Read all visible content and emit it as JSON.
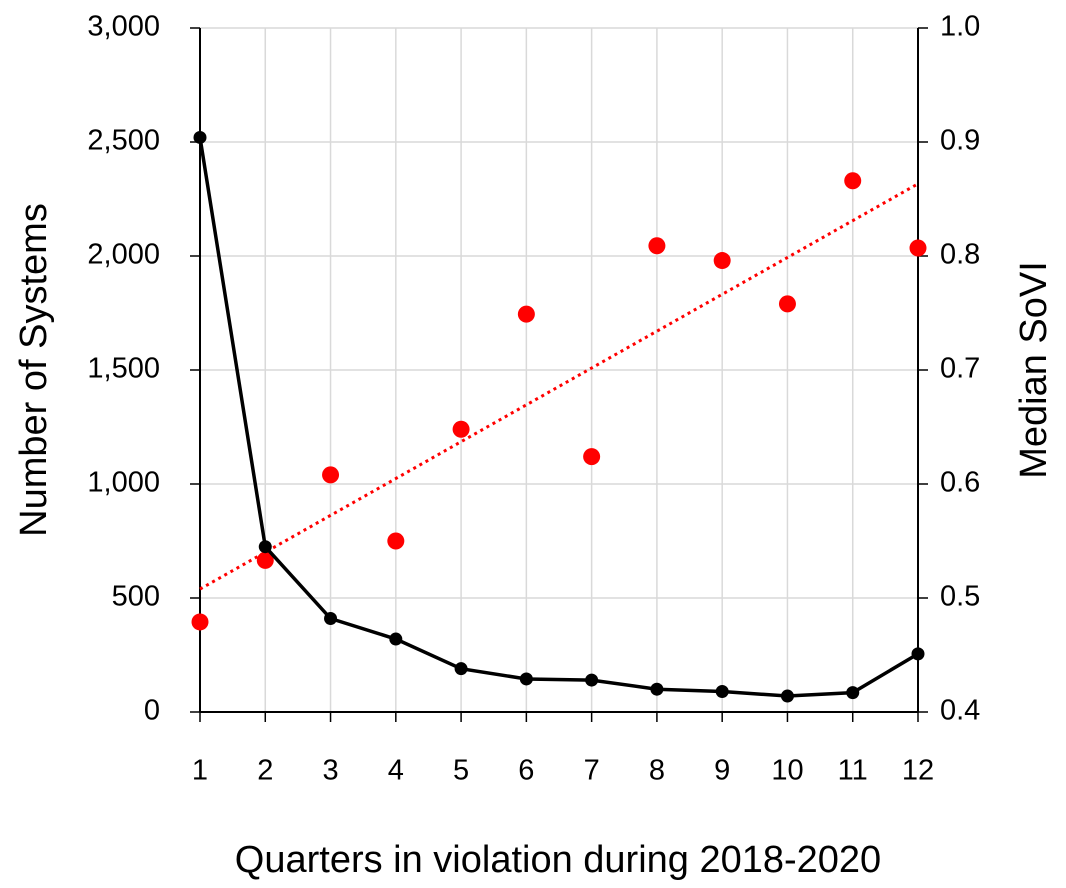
{
  "chart_data": {
    "type": "line",
    "x_label": "Quarters in violation during 2018-2020",
    "y_label": "Number of Systems",
    "y2_label": "Median SoVI",
    "x": [
      1,
      2,
      3,
      4,
      5,
      6,
      7,
      8,
      9,
      10,
      11,
      12
    ],
    "xlim": [
      1,
      12
    ],
    "xticks": [
      1,
      2,
      3,
      4,
      5,
      6,
      7,
      8,
      9,
      10,
      11,
      12
    ],
    "ylim": [
      0,
      3000
    ],
    "yticks": [
      0,
      500,
      {
        "value": 1000,
        "label": "1,000"
      },
      {
        "value": 1500,
        "label": "1,500"
      },
      {
        "value": 2000,
        "label": "2,000"
      },
      {
        "value": 2500,
        "label": "2,500"
      },
      {
        "value": 3000,
        "label": "3,000"
      }
    ],
    "y2lim": [
      0.4,
      1.0
    ],
    "y2ticks": [
      0.4,
      0.5,
      0.6,
      0.7,
      0.8,
      0.9,
      {
        "value": 1.0,
        "label": "1.0"
      }
    ],
    "grid": true,
    "series": [
      {
        "type": "line",
        "color": "#000000",
        "values": [
          2520,
          725,
          410,
          320,
          190,
          145,
          140,
          100,
          90,
          70,
          85,
          255
        ]
      },
      {
        "type": "scatter",
        "axis": "y2",
        "color": "#ff0000",
        "trendline": true,
        "values": [
          0.479,
          0.533,
          0.608,
          0.55,
          0.648,
          0.749,
          0.624,
          0.809,
          0.796,
          0.758,
          0.866,
          0.807
        ]
      }
    ]
  }
}
